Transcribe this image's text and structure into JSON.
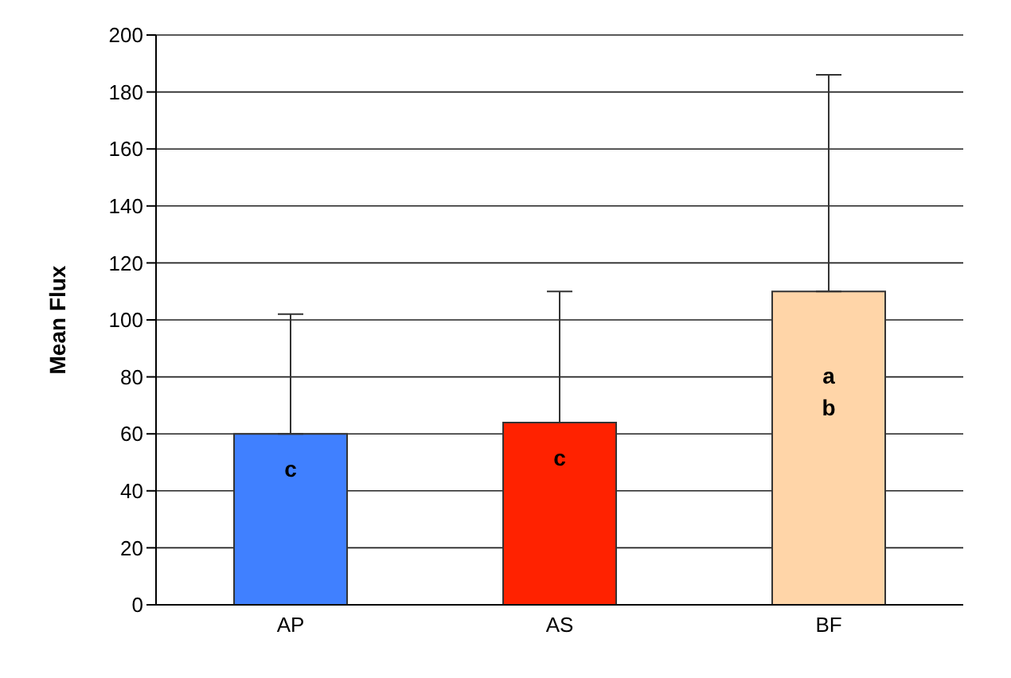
{
  "chart_data": {
    "type": "bar",
    "ylabel": "Mean Flux",
    "categories": [
      "AP",
      "AS",
      "BF"
    ],
    "values": [
      60,
      64,
      110
    ],
    "colors": [
      "#4080ff",
      "#ff2200",
      "#ffd5a8"
    ],
    "errors": [
      [
        60,
        102
      ],
      [
        64,
        110
      ],
      [
        110,
        186
      ]
    ],
    "ylim": [
      0,
      200
    ],
    "yticks": [
      0,
      20,
      40,
      60,
      80,
      100,
      120,
      140,
      160,
      180,
      200
    ],
    "grid": "y",
    "annotations": [
      "c",
      "c",
      "a\nb"
    ]
  }
}
